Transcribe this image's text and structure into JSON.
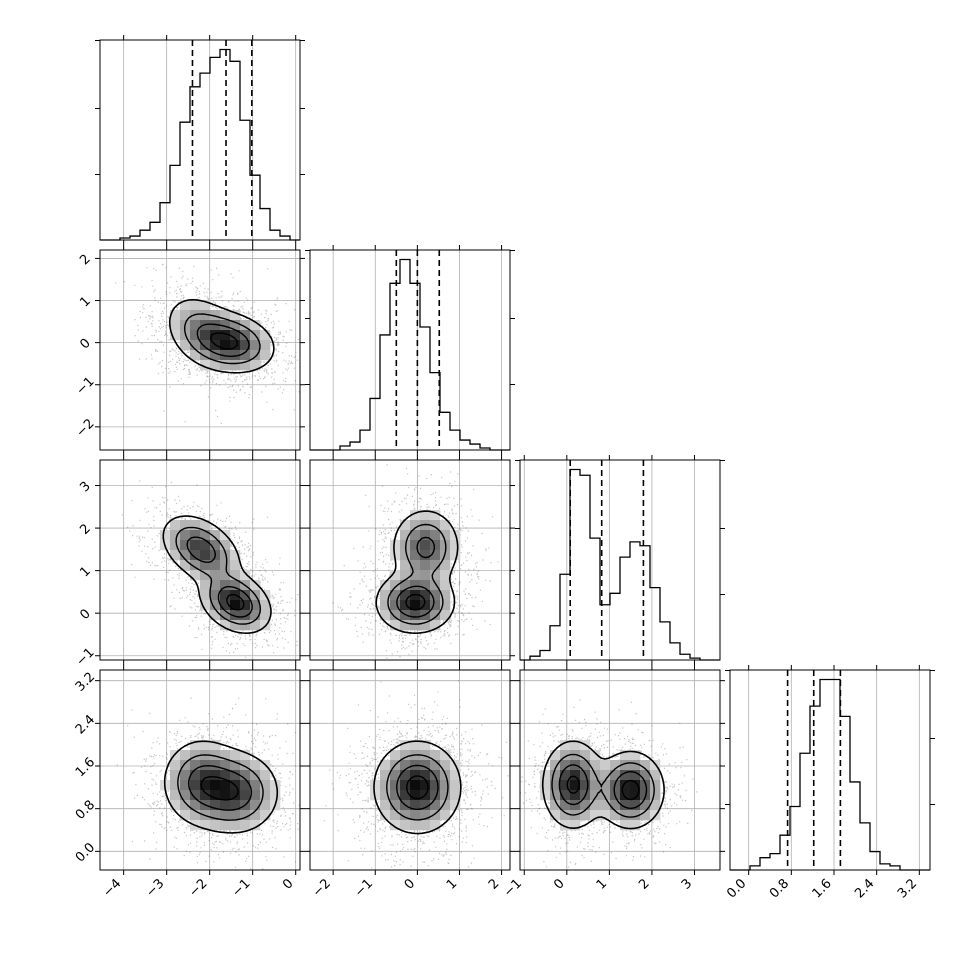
{
  "chart_data": {
    "type": "corner",
    "grid": true,
    "axes_ticks": [
      [
        -4,
        -3,
        -2,
        -1,
        0
      ],
      [
        -2,
        -1,
        0,
        1,
        2
      ],
      [
        -1,
        0,
        1,
        2,
        3
      ],
      [
        0.0,
        0.8,
        1.6,
        2.4,
        3.2
      ]
    ],
    "tick_labels": [
      [
        "−4",
        "−3",
        "−2",
        "−1",
        "0"
      ],
      [
        "−2",
        "−1",
        "0",
        "1",
        "2"
      ],
      [
        "−1",
        "0",
        "1",
        "2",
        "3"
      ],
      [
        "0.0",
        "0.8",
        "1.6",
        "2.4",
        "3.2"
      ]
    ],
    "ranges": [
      [
        -4.55,
        0.1
      ],
      [
        -2.55,
        2.2
      ],
      [
        -1.1,
        3.6
      ],
      [
        -0.35,
        3.4
      ]
    ],
    "quantiles": [
      [
        -2.4,
        -1.62,
        -1.02
      ],
      [
        -0.5,
        0.0,
        0.52
      ],
      [
        0.08,
        0.82,
        1.8
      ],
      [
        0.73,
        1.22,
        1.72
      ]
    ],
    "histograms": [
      {
        "edges_start": -4.55,
        "bin_width": 0.2325,
        "counts": [
          0,
          0,
          1,
          2,
          5,
          9,
          19,
          38,
          60,
          78,
          85,
          93,
          97,
          91,
          61,
          33,
          16,
          5,
          2,
          0
        ]
      },
      {
        "edges_start": -2.55,
        "bin_width": 0.2375,
        "counts": [
          0,
          0,
          0,
          2,
          4,
          10,
          26,
          58,
          84,
          96,
          84,
          62,
          39,
          19,
          10,
          5,
          3,
          1,
          0,
          0
        ]
      },
      {
        "edges_start": -1.1,
        "bin_width": 0.235,
        "counts": [
          0,
          2,
          5,
          18,
          45,
          100,
          97,
          64,
          29,
          35,
          54,
          62,
          60,
          38,
          20,
          9,
          3,
          1,
          0,
          0
        ]
      },
      {
        "edges_start": -0.35,
        "bin_width": 0.1875,
        "counts": [
          0,
          0,
          2,
          6,
          8,
          17,
          31,
          57,
          80,
          93,
          93,
          75,
          43,
          23,
          9,
          3,
          2,
          0,
          0,
          0
        ]
      }
    ],
    "densities": [
      {
        "row": 1,
        "col": 0,
        "components": [
          {
            "mean": [
              -1.5,
              0.0
            ],
            "sd": [
              0.5,
              0.35
            ],
            "rho": -0.2,
            "w": 0.65
          },
          {
            "mean": [
              -2.2,
              0.3
            ],
            "sd": [
              0.45,
              0.45
            ],
            "rho": -0.3,
            "w": 0.35
          }
        ]
      },
      {
        "row": 2,
        "col": 0,
        "components": [
          {
            "mean": [
              -1.4,
              0.25
            ],
            "sd": [
              0.4,
              0.35
            ],
            "rho": -0.3,
            "w": 0.5
          },
          {
            "mean": [
              -2.2,
              1.5
            ],
            "sd": [
              0.45,
              0.4
            ],
            "rho": -0.4,
            "w": 0.5
          }
        ]
      },
      {
        "row": 2,
        "col": 1,
        "components": [
          {
            "mean": [
              -0.05,
              0.25
            ],
            "sd": [
              0.45,
              0.35
            ],
            "rho": 0.0,
            "w": 0.55
          },
          {
            "mean": [
              0.2,
              1.55
            ],
            "sd": [
              0.4,
              0.45
            ],
            "rho": 0.0,
            "w": 0.45
          }
        ]
      },
      {
        "row": 3,
        "col": 0,
        "components": [
          {
            "mean": [
              -1.4,
              1.1
            ],
            "sd": [
              0.5,
              0.38
            ],
            "rho": 0.0,
            "w": 0.55
          },
          {
            "mean": [
              -2.2,
              1.3
            ],
            "sd": [
              0.45,
              0.4
            ],
            "rho": 0.0,
            "w": 0.45
          }
        ]
      },
      {
        "row": 3,
        "col": 1,
        "components": [
          {
            "mean": [
              0.0,
              1.2
            ],
            "sd": [
              0.5,
              0.42
            ],
            "rho": 0.0,
            "w": 1.0
          }
        ]
      },
      {
        "row": 3,
        "col": 2,
        "components": [
          {
            "mean": [
              0.15,
              1.25
            ],
            "sd": [
              0.35,
              0.4
            ],
            "rho": 0.0,
            "w": 0.5
          },
          {
            "mean": [
              1.5,
              1.15
            ],
            "sd": [
              0.38,
              0.35
            ],
            "rho": 0.0,
            "w": 0.5
          }
        ]
      }
    ],
    "colors": {
      "line": "#000000",
      "grid": "#b0b0b0",
      "points": "#555555",
      "dashed": "#000000"
    }
  }
}
